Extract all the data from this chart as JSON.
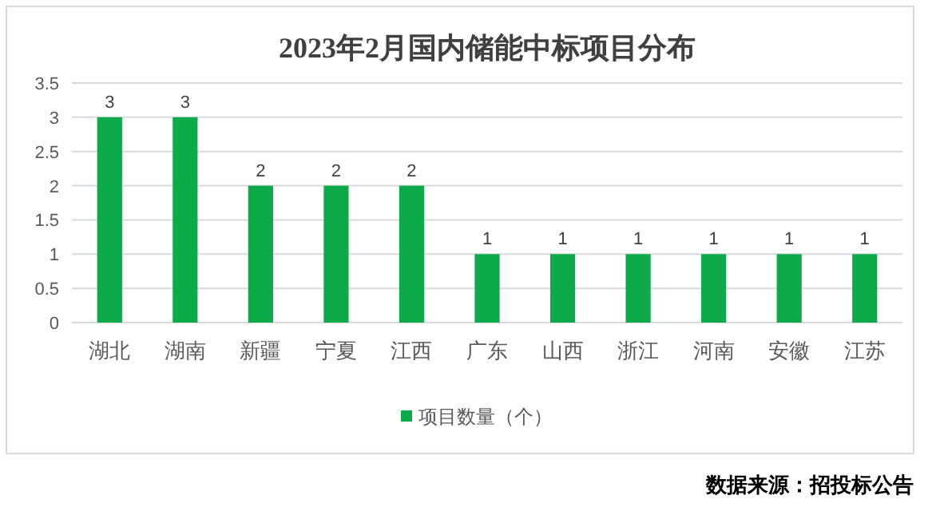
{
  "chart_data": {
    "type": "bar",
    "title": "2023年2月国内储能中标项目分布",
    "categories": [
      "湖北",
      "湖南",
      "新疆",
      "宁夏",
      "江西",
      "广东",
      "山西",
      "浙江",
      "河南",
      "安徽",
      "江苏"
    ],
    "series": [
      {
        "name": "项目数量（个）",
        "color": "#0daa4a",
        "values": [
          3,
          3,
          2,
          2,
          2,
          1,
          1,
          1,
          1,
          1,
          1
        ]
      }
    ],
    "ylim": [
      0,
      3.5
    ],
    "yticks": [
      0,
      0.5,
      1,
      1.5,
      2,
      2.5,
      3,
      3.5
    ],
    "grid": "y",
    "legend": "bottom",
    "data_labels": true,
    "annotations": [
      "数据来源：招投标公告"
    ]
  }
}
